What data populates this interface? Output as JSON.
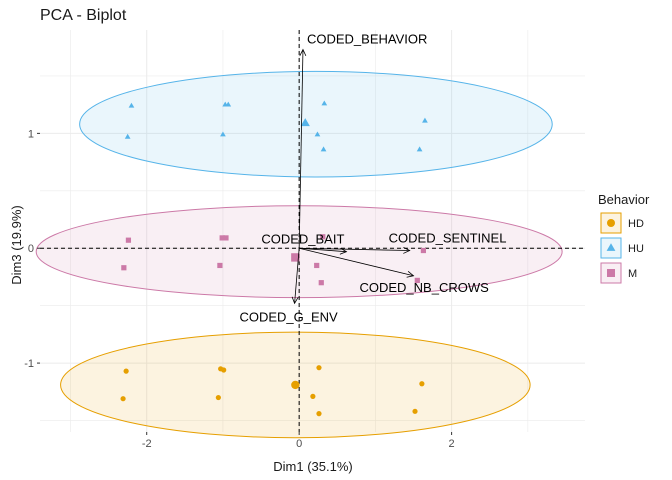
{
  "chart_data": {
    "type": "scatter",
    "title": "PCA - Biplot",
    "xlabel": "Dim1 (35.1%)",
    "ylabel": "Dim3 (19.9%)",
    "xlim": [
      -3.4,
      3.75
    ],
    "ylim": [
      -1.6,
      1.9
    ],
    "x_ticks": [
      -2,
      0,
      2
    ],
    "y_ticks": [
      -1,
      0,
      1
    ],
    "x_tick_labels": [
      "-2",
      "0",
      "2"
    ],
    "y_tick_labels": [
      "-1",
      "0",
      "1"
    ],
    "grid": true,
    "legend": {
      "title": "Behavior",
      "placement": "right",
      "entries": [
        {
          "label": "HD",
          "color": "#E69F00",
          "shape": "circle"
        },
        {
          "label": "HU",
          "color": "#56B4E9",
          "shape": "triangle"
        },
        {
          "label": "M",
          "color": "#CC79A7",
          "shape": "square"
        }
      ]
    },
    "series": [
      {
        "name": "HD",
        "color": "#E69F00",
        "shape": "circle",
        "points": [
          {
            "x": -2.27,
            "y": -1.07
          },
          {
            "x": -2.31,
            "y": -1.31
          },
          {
            "x": -0.99,
            "y": -1.06
          },
          {
            "x": -1.03,
            "y": -1.05
          },
          {
            "x": -1.06,
            "y": -1.3
          },
          {
            "x": 0.26,
            "y": -1.04
          },
          {
            "x": 0.18,
            "y": -1.29
          },
          {
            "x": 0.26,
            "y": -1.44
          },
          {
            "x": 1.61,
            "y": -1.18
          },
          {
            "x": 1.52,
            "y": -1.42
          }
        ],
        "centroid": {
          "x": -0.05,
          "y": -1.19
        },
        "ellipse": {
          "cx": -0.05,
          "cy": -1.19,
          "rx": 3.08,
          "ry": 0.46
        }
      },
      {
        "name": "HU",
        "color": "#56B4E9",
        "shape": "triangle",
        "points": [
          {
            "x": -2.2,
            "y": 1.24
          },
          {
            "x": -2.25,
            "y": 0.97
          },
          {
            "x": -0.97,
            "y": 1.25
          },
          {
            "x": -0.93,
            "y": 1.25
          },
          {
            "x": -1.0,
            "y": 0.99
          },
          {
            "x": 0.33,
            "y": 1.26
          },
          {
            "x": 0.32,
            "y": 0.86
          },
          {
            "x": 0.24,
            "y": 0.99
          },
          {
            "x": 1.65,
            "y": 1.11
          },
          {
            "x": 1.58,
            "y": 0.86
          }
        ],
        "centroid": {
          "x": 0.08,
          "y": 1.09
        },
        "ellipse": {
          "cx": 0.22,
          "cy": 1.08,
          "rx": 3.1,
          "ry": 0.46
        }
      },
      {
        "name": "M",
        "color": "#CC79A7",
        "shape": "square",
        "points": [
          {
            "x": -2.24,
            "y": 0.07
          },
          {
            "x": -2.3,
            "y": -0.17
          },
          {
            "x": -0.96,
            "y": 0.09
          },
          {
            "x": -1.01,
            "y": 0.09
          },
          {
            "x": -1.04,
            "y": -0.15
          },
          {
            "x": 0.31,
            "y": 0.1
          },
          {
            "x": 0.23,
            "y": -0.15
          },
          {
            "x": 0.29,
            "y": -0.3
          },
          {
            "x": 1.63,
            "y": -0.02
          },
          {
            "x": 1.55,
            "y": -0.28
          }
        ],
        "centroid": {
          "x": -0.05,
          "y": -0.08
        },
        "ellipse": {
          "cx": 0.0,
          "cy": -0.03,
          "rx": 3.45,
          "ry": 0.4
        }
      }
    ],
    "variables": [
      {
        "name": "CODED_BEHAVIOR",
        "x": 0.05,
        "y": 1.73
      },
      {
        "name": "CODED_BAIT",
        "x": 0.62,
        "y": -0.03
      },
      {
        "name": "CODED_SENTINEL",
        "x": 1.45,
        "y": -0.02
      },
      {
        "name": "CODED_NB_CROWS",
        "x": 1.5,
        "y": -0.24
      },
      {
        "name": "CODED_G_ENV",
        "x": -0.06,
        "y": -0.48
      }
    ]
  }
}
